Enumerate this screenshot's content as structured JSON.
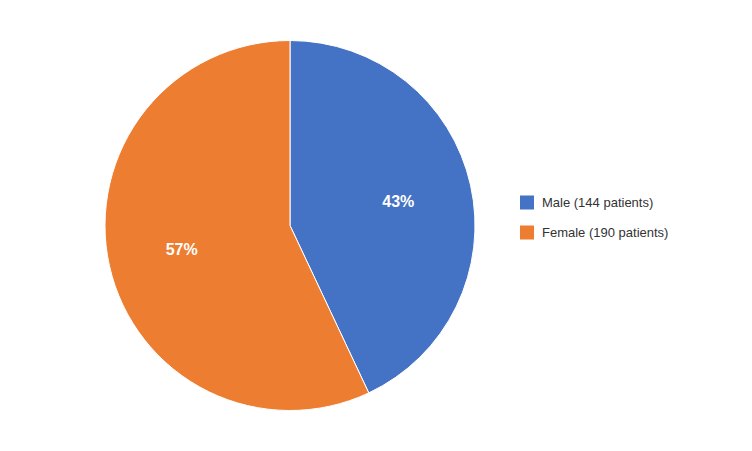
{
  "chart_data": {
    "type": "pie",
    "categories": [
      "Male (144 patients)",
      "Female (190 patients)"
    ],
    "values": [
      43,
      57
    ],
    "value_labels": [
      "43%",
      "57%"
    ],
    "colors": [
      "#4472C4",
      "#ED7D31"
    ],
    "data_labels": true,
    "legend": "right"
  }
}
